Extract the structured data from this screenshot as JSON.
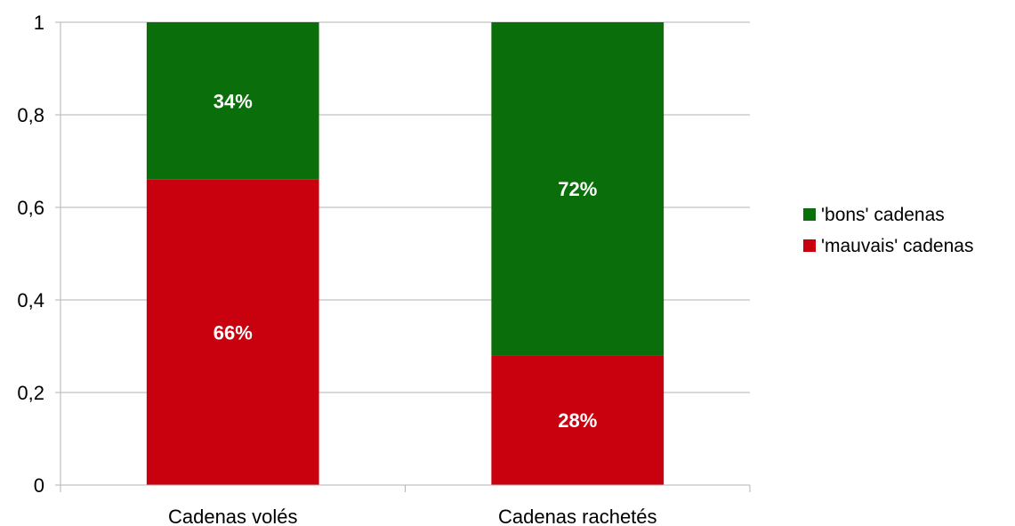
{
  "chart_data": {
    "type": "bar",
    "stacked": true,
    "categories": [
      "Cadenas volés",
      "Cadenas rachetés"
    ],
    "series": [
      {
        "name": "'mauvais' cadenas",
        "values": [
          0.66,
          0.28
        ],
        "labels": [
          "66%",
          "28%"
        ],
        "color": "#c9000d"
      },
      {
        "name": "'bons' cadenas",
        "values": [
          0.34,
          0.72
        ],
        "labels": [
          "34%",
          "72%"
        ],
        "color": "#0a6e0a"
      }
    ],
    "legend_order": [
      1,
      0
    ],
    "yticks": [
      {
        "value": 0,
        "label": "0"
      },
      {
        "value": 0.2,
        "label": "0,2"
      },
      {
        "value": 0.4,
        "label": "0,4"
      },
      {
        "value": 0.6,
        "label": "0,6"
      },
      {
        "value": 0.8,
        "label": "0,8"
      },
      {
        "value": 1,
        "label": "1"
      }
    ],
    "ylim": [
      0,
      1
    ],
    "grid": true,
    "legend_position": "right",
    "title": "",
    "xlabel": "",
    "ylabel": ""
  }
}
